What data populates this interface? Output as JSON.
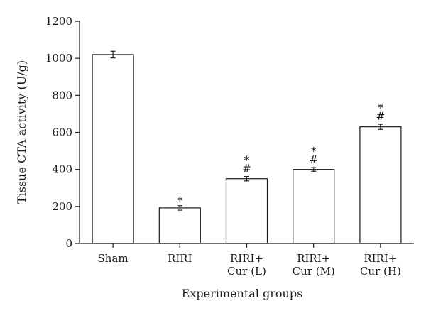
{
  "chart_data": {
    "type": "bar",
    "title": "",
    "xlabel": "Experimental groups",
    "ylabel": "Tissue CTA activity (U/g)",
    "ylim": [
      0,
      1200
    ],
    "yticks": [
      0,
      200,
      400,
      600,
      800,
      1000,
      1200
    ],
    "categories": [
      [
        "Sham"
      ],
      [
        "RIRI"
      ],
      [
        "RIRI+",
        "Cur (L)"
      ],
      [
        "RIRI+",
        "Cur (M)"
      ],
      [
        "RIRI+",
        "Cur (H)"
      ]
    ],
    "values": [
      1020,
      192,
      350,
      400,
      630
    ],
    "errors": [
      18,
      12,
      12,
      10,
      14
    ],
    "annotations": [
      [],
      [
        "*"
      ],
      [
        "*",
        "#"
      ],
      [
        "*",
        "#"
      ],
      [
        "*",
        "#"
      ]
    ],
    "grid": false,
    "legend": "none"
  }
}
